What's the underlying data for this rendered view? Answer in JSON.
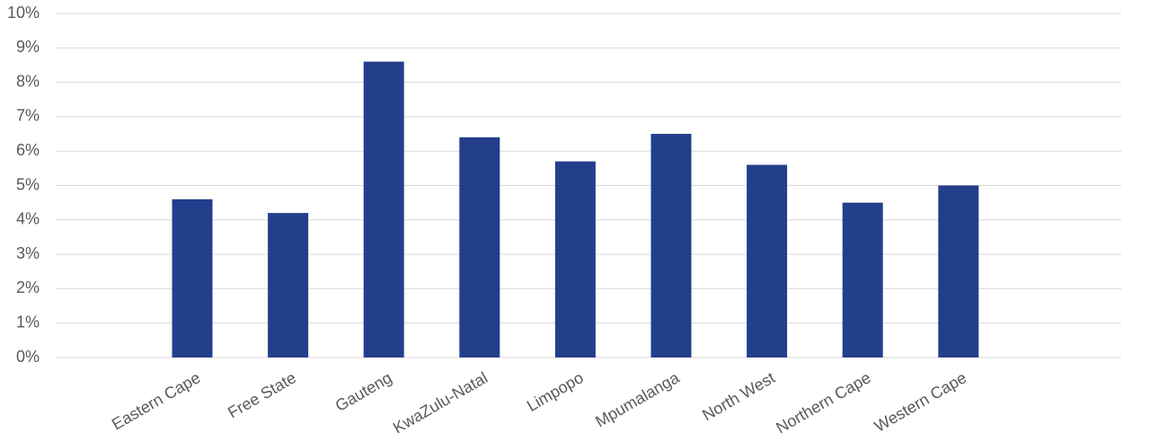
{
  "chart_data": {
    "type": "bar",
    "categories": [
      "Eastern Cape",
      "Free State",
      "Gauteng",
      "KwaZulu-Natal",
      "Limpopo",
      "Mpumalanga",
      "North West",
      "Northern Cape",
      "Western Cape"
    ],
    "values": [
      4.6,
      4.2,
      8.6,
      6.4,
      5.7,
      6.5,
      5.6,
      4.5,
      5.0
    ],
    "color": "#233f8c",
    "ylim": [
      0,
      10
    ],
    "yticks": [
      {
        "value": 0,
        "label": "0%"
      },
      {
        "value": 1,
        "label": "1%"
      },
      {
        "value": 2,
        "label": "2%"
      },
      {
        "value": 3,
        "label": "3%"
      },
      {
        "value": 4,
        "label": "4%"
      },
      {
        "value": 5,
        "label": "5%"
      },
      {
        "value": 6,
        "label": "6%"
      },
      {
        "value": 7,
        "label": "7%"
      },
      {
        "value": 8,
        "label": "8%"
      },
      {
        "value": 9,
        "label": "9%"
      },
      {
        "value": 10,
        "label": "10%"
      }
    ],
    "grid": true
  }
}
